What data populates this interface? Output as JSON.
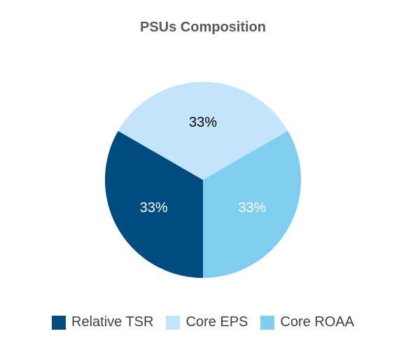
{
  "chart_data": {
    "type": "pie",
    "title": "PSUs Composition",
    "categories": [
      "Relative TSR",
      "Core EPS",
      "Core ROAA"
    ],
    "values": [
      33,
      33,
      33
    ],
    "data_labels": [
      "33%",
      "33%",
      "33%"
    ],
    "colors": [
      "#004B7F",
      "#C3E4FB",
      "#7FCDEF"
    ],
    "label_colors": [
      "#ffffff",
      "#000000",
      "#ffffff"
    ],
    "legend_position": "bottom"
  }
}
